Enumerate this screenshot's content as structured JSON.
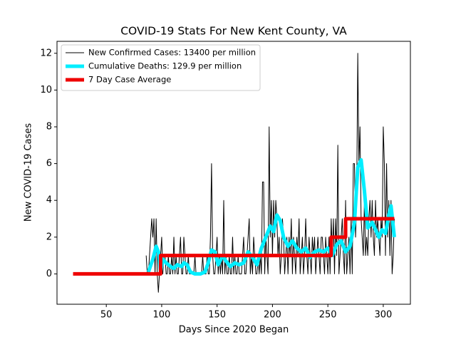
{
  "chart_data": {
    "type": "line",
    "title": "COVID-19 Stats For New Kent County, VA",
    "x_label": "Days Since 2020 Began",
    "y_label": "New COVID-19 Cases",
    "xlim": [
      5.5,
      324.5
    ],
    "ylim": [
      -1.65,
      12.65
    ],
    "xticks": [
      50,
      100,
      150,
      200,
      250,
      300
    ],
    "yticks": [
      0,
      2,
      4,
      6,
      8,
      10,
      12
    ],
    "legend": "upper left",
    "series": [
      {
        "name": "New Confirmed Cases: 13400 per million",
        "color": "#000000",
        "width": 1,
        "x": [
          86,
          87,
          88,
          89,
          90,
          91,
          92,
          93,
          94,
          95,
          96,
          97,
          98,
          99,
          100,
          101,
          102,
          103,
          104,
          105,
          106,
          107,
          108,
          109,
          110,
          111,
          112,
          113,
          114,
          115,
          116,
          117,
          118,
          119,
          120,
          121,
          122,
          123,
          124,
          125,
          126,
          127,
          128,
          129,
          130,
          131,
          132,
          133,
          134,
          135,
          136,
          137,
          138,
          139,
          140,
          141,
          142,
          143,
          144,
          145,
          146,
          147,
          148,
          149,
          150,
          151,
          152,
          153,
          154,
          155,
          156,
          157,
          158,
          159,
          160,
          161,
          162,
          163,
          164,
          165,
          166,
          167,
          168,
          169,
          170,
          171,
          172,
          173,
          174,
          175,
          176,
          177,
          178,
          179,
          180,
          181,
          182,
          183,
          184,
          185,
          186,
          187,
          188,
          189,
          190,
          191,
          192,
          193,
          194,
          195,
          196,
          197,
          198,
          199,
          200,
          201,
          202,
          203,
          204,
          205,
          206,
          207,
          208,
          209,
          210,
          211,
          212,
          213,
          214,
          215,
          216,
          217,
          218,
          219,
          220,
          221,
          222,
          223,
          224,
          225,
          226,
          227,
          228,
          229,
          230,
          231,
          232,
          233,
          234,
          235,
          236,
          237,
          238,
          239,
          240,
          241,
          242,
          243,
          244,
          245,
          246,
          247,
          248,
          249,
          250,
          251,
          252,
          253,
          254,
          255,
          256,
          257,
          258,
          259,
          260,
          261,
          262,
          263,
          264,
          265,
          266,
          267,
          268,
          269,
          270,
          271,
          272,
          273,
          274,
          275,
          276,
          277,
          278,
          279,
          280,
          281,
          282,
          283,
          284,
          285,
          286,
          287,
          288,
          289,
          290,
          291,
          292,
          293,
          294,
          295,
          296,
          297,
          298,
          299,
          300,
          301,
          302,
          303,
          304,
          305,
          306,
          307,
          308,
          309,
          310
        ],
        "values": [
          1,
          0,
          0,
          1,
          2,
          3,
          2,
          3,
          0,
          3,
          0,
          -1,
          0,
          1,
          2,
          0,
          1,
          1,
          0,
          0,
          1,
          0,
          0,
          1,
          0,
          2,
          0,
          1,
          0,
          0,
          1,
          2,
          0,
          0,
          2,
          1,
          0,
          0,
          1,
          0,
          0,
          0,
          0,
          0,
          1,
          0,
          0,
          0,
          0,
          0,
          0,
          1,
          0,
          0,
          0,
          1,
          0,
          0,
          2,
          6,
          1,
          0,
          0,
          1,
          2,
          0,
          1,
          0,
          1,
          0,
          4,
          0,
          1,
          0,
          0,
          1,
          0,
          0,
          2,
          0,
          1,
          0,
          0,
          1,
          0,
          0,
          0,
          1,
          2,
          0,
          0,
          1,
          2,
          3,
          0,
          1,
          0,
          2,
          1,
          0,
          0,
          1,
          0,
          1,
          0,
          5,
          5,
          0,
          2,
          1,
          0,
          8,
          2,
          4,
          1,
          4,
          2,
          4,
          3,
          1,
          2,
          0,
          1,
          3,
          2,
          0,
          1,
          2,
          0,
          2,
          1,
          3,
          0,
          2,
          1,
          0,
          2,
          1,
          3,
          0,
          1,
          2,
          0,
          1,
          3,
          1,
          0,
          2,
          1,
          0,
          2,
          1,
          2,
          0,
          1,
          2,
          1,
          0,
          2,
          2,
          1,
          0,
          2,
          1,
          0,
          2,
          0,
          3,
          1,
          3,
          0,
          3,
          1,
          7,
          0,
          1,
          2,
          3,
          1,
          0,
          4,
          0,
          1,
          2,
          0,
          3,
          0,
          6,
          6,
          2,
          4,
          12,
          6,
          8,
          3,
          2,
          1,
          4,
          1,
          2,
          1,
          3,
          4,
          2,
          4,
          2,
          1,
          4,
          2,
          3,
          2,
          1,
          3,
          2,
          8,
          6,
          1,
          6,
          2,
          4,
          1,
          4,
          0,
          1,
          3
        ]
      },
      {
        "name": "Cumulative Deaths: 129.9 per million",
        "color": "#00eeff",
        "width": 5,
        "x": [
          88,
          92,
          95,
          97,
          99,
          101,
          104,
          108,
          111,
          114,
          118,
          120,
          123,
          126,
          130,
          135,
          139,
          142,
          145,
          148,
          151,
          155,
          158,
          162,
          166,
          170,
          174,
          178,
          182,
          186,
          190,
          194,
          198,
          201,
          204,
          207,
          210,
          214,
          218,
          222,
          226,
          230,
          234,
          238,
          242,
          246,
          250,
          254,
          258,
          262,
          266,
          270,
          274,
          277,
          280,
          283,
          286,
          290,
          293,
          296,
          299,
          302,
          305,
          307,
          310
        ],
        "values": [
          0.1,
          0.8,
          1.5,
          1.2,
          0.1,
          0.8,
          0.6,
          0.4,
          0.3,
          0.5,
          0.4,
          0.6,
          0.5,
          0.1,
          0,
          0,
          0.1,
          0.6,
          1.3,
          1.2,
          0.5,
          1.0,
          0.7,
          0.4,
          0.6,
          0.5,
          0.6,
          1.2,
          0.9,
          0.5,
          1.4,
          2.0,
          2.6,
          2.3,
          3.2,
          2.9,
          2.0,
          1.5,
          1.8,
          1.4,
          1.2,
          1.4,
          0.9,
          1.2,
          1.3,
          1.2,
          1.4,
          1.0,
          1.6,
          1.8,
          1.2,
          1.5,
          2.8,
          5.8,
          6.2,
          4.5,
          2.5,
          2.8,
          2.4,
          2.0,
          2.4,
          2.2,
          3.2,
          3.7,
          2.0
        ]
      },
      {
        "name": "7 Day Case Average",
        "color": "#ee0000",
        "width": 5,
        "x": [
          20,
          99,
          99,
          253,
          253,
          266,
          266,
          310
        ],
        "values": [
          0,
          0,
          1,
          1,
          2,
          2,
          3,
          3
        ]
      }
    ]
  }
}
